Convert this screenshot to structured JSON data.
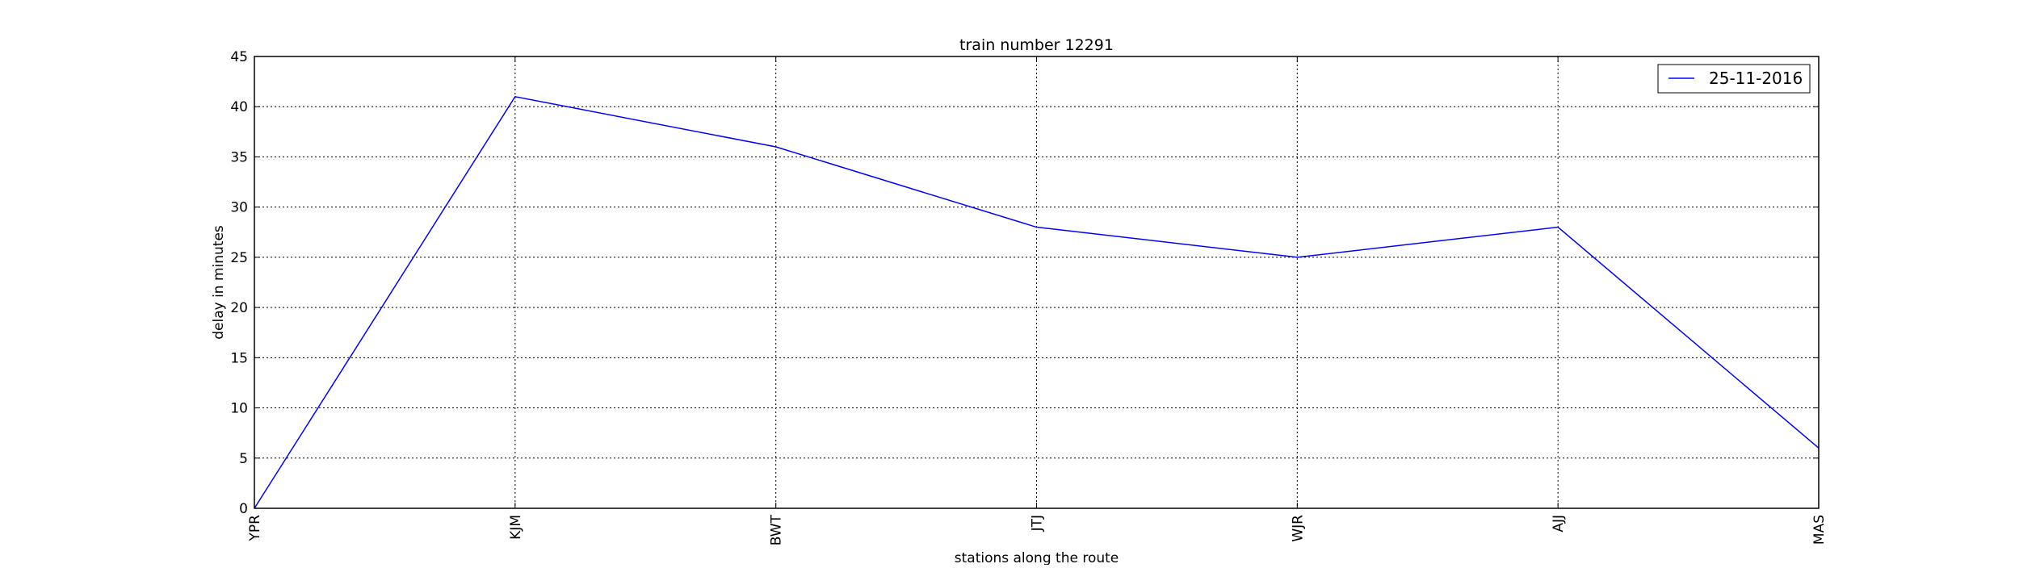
{
  "chart_data": {
    "type": "line",
    "title": "train number 12291",
    "xlabel": "stations along the route",
    "ylabel": "delay in minutes",
    "categories": [
      "YPR",
      "KJM",
      "BWT",
      "JTJ",
      "WJR",
      "AJJ",
      "MAS"
    ],
    "series": [
      {
        "name": "25-11-2016",
        "color": "#0000ff",
        "values": [
          0,
          41,
          36,
          28,
          25,
          28,
          6
        ]
      }
    ],
    "ylim": [
      0,
      45
    ],
    "yticks": [
      0,
      5,
      10,
      15,
      20,
      25,
      30,
      35,
      40,
      45
    ],
    "grid": true,
    "legend_position": "top-right"
  }
}
